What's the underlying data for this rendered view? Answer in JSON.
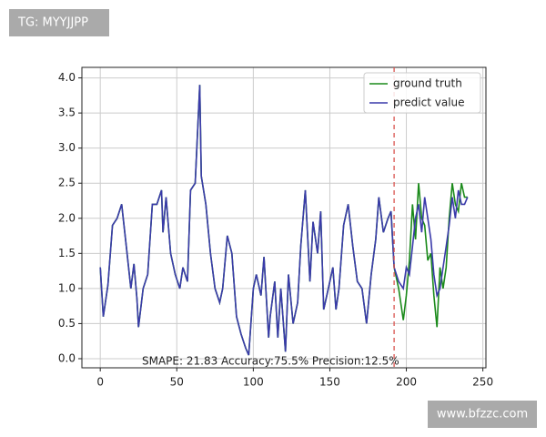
{
  "chart_data": {
    "type": "line",
    "annotation": "SMAPE: 21.83 Accuracy:75.5% Precision:12.5%",
    "x": [
      0,
      2,
      5,
      8,
      11,
      14,
      17,
      20,
      22,
      24,
      25,
      28,
      31,
      34,
      37,
      40,
      41,
      43,
      46,
      49,
      52,
      54,
      57,
      59,
      62,
      65,
      66,
      69,
      72,
      75,
      78,
      80,
      83,
      86,
      89,
      92,
      95,
      97,
      100,
      102,
      105,
      107,
      110,
      111,
      114,
      116,
      118,
      121,
      123,
      126,
      129,
      131,
      134,
      137,
      139,
      142,
      144,
      146,
      149,
      152,
      154,
      156,
      159,
      162,
      165,
      168,
      171,
      174,
      177,
      180,
      182,
      185,
      188,
      190,
      192,
      195,
      198,
      200,
      202,
      204,
      206,
      208,
      210,
      212,
      214,
      216,
      218,
      220,
      222,
      224,
      226,
      228,
      230,
      232,
      234,
      236,
      238,
      240
    ],
    "series": [
      {
        "name": "ground truth",
        "color": "#1a8a1a",
        "values": [
          1.3,
          0.6,
          1.05,
          1.9,
          2.0,
          2.2,
          1.6,
          1.0,
          1.35,
          0.85,
          0.45,
          1.0,
          1.2,
          2.2,
          2.2,
          2.4,
          1.8,
          2.3,
          1.5,
          1.2,
          1.0,
          1.3,
          1.1,
          2.4,
          2.5,
          3.9,
          2.6,
          2.2,
          1.5,
          1.0,
          0.8,
          1.0,
          1.75,
          1.5,
          0.6,
          0.35,
          0.15,
          0.05,
          1.0,
          1.2,
          0.9,
          1.45,
          0.3,
          0.6,
          1.1,
          0.3,
          1.0,
          0.1,
          1.2,
          0.5,
          0.8,
          1.6,
          2.4,
          1.1,
          1.95,
          1.5,
          2.1,
          0.7,
          1.0,
          1.3,
          0.7,
          1.0,
          1.9,
          2.2,
          1.6,
          1.1,
          1.0,
          0.5,
          1.2,
          1.7,
          2.3,
          1.8,
          2.0,
          2.1,
          1.3,
          1.0,
          0.55,
          0.9,
          1.4,
          2.2,
          1.7,
          2.5,
          2.0,
          1.9,
          1.4,
          1.5,
          0.9,
          0.45,
          1.3,
          1.0,
          1.3,
          2.0,
          2.5,
          2.2,
          2.1,
          2.5,
          2.3,
          2.3
        ]
      },
      {
        "name": "predict value",
        "color": "#3a3aaa",
        "values": [
          1.3,
          0.6,
          1.05,
          1.9,
          2.0,
          2.2,
          1.6,
          1.0,
          1.35,
          0.85,
          0.45,
          1.0,
          1.2,
          2.2,
          2.2,
          2.4,
          1.8,
          2.3,
          1.5,
          1.2,
          1.0,
          1.3,
          1.1,
          2.4,
          2.5,
          3.9,
          2.6,
          2.2,
          1.5,
          1.0,
          0.8,
          1.0,
          1.75,
          1.5,
          0.6,
          0.35,
          0.15,
          0.05,
          1.0,
          1.2,
          0.9,
          1.45,
          0.3,
          0.6,
          1.1,
          0.3,
          1.0,
          0.1,
          1.2,
          0.5,
          0.8,
          1.6,
          2.4,
          1.1,
          1.95,
          1.5,
          2.1,
          0.7,
          1.0,
          1.3,
          0.7,
          1.0,
          1.9,
          2.2,
          1.6,
          1.1,
          1.0,
          0.5,
          1.2,
          1.7,
          2.3,
          1.8,
          2.0,
          2.1,
          1.3,
          1.1,
          1.0,
          1.3,
          1.2,
          1.6,
          2.0,
          2.2,
          1.8,
          2.3,
          2.0,
          1.7,
          1.2,
          0.9,
          1.0,
          1.3,
          1.6,
          1.9,
          2.3,
          2.0,
          2.4,
          2.2,
          2.2,
          2.3
        ]
      }
    ],
    "vline": {
      "x": 192,
      "color": "#d9534f"
    },
    "xlim": [
      -12,
      252
    ],
    "ylim": [
      -0.13,
      4.15
    ],
    "xticks": [
      0,
      50,
      100,
      150,
      200,
      250
    ],
    "yticks": [
      {
        "value": 0,
        "label": "0.0"
      },
      {
        "value": 0.5,
        "label": "0.5"
      },
      {
        "value": 1,
        "label": "1.0"
      },
      {
        "value": 1.5,
        "label": "1.5"
      },
      {
        "value": 2,
        "label": "2.0"
      },
      {
        "value": 2.5,
        "label": "2.5"
      },
      {
        "value": 3,
        "label": "3.0"
      },
      {
        "value": 3.5,
        "label": "3.5"
      },
      {
        "value": 4,
        "label": "4.0"
      }
    ],
    "grid": true,
    "legend": "upper right"
  },
  "watermarks": [
    "TG: MYYJJPP",
    "www.bfzzc.com"
  ]
}
